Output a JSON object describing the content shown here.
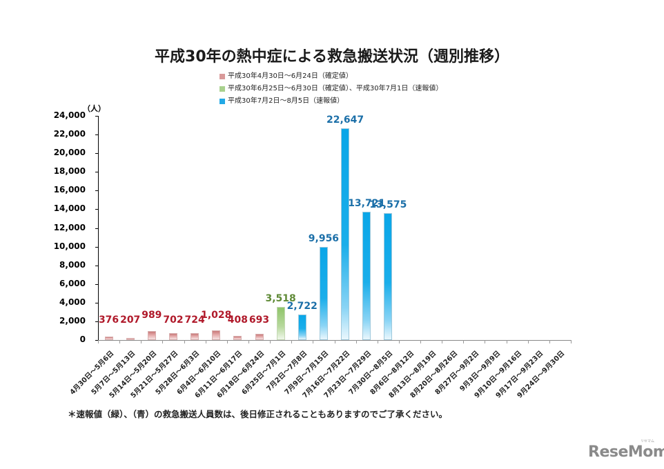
{
  "title": "平成30年の熱中症による救急搬送状況（週別推移）",
  "legend": [
    {
      "label": "平成30年4月30日～6月24日（確定値）",
      "color": "#d99a9a"
    },
    {
      "label": "平成30年6月25日～6月30日（確定値）、平成30年7月1日（速報値）",
      "color": "#a9d18e"
    },
    {
      "label": "平成30年7月2日～8月5日（速報値）",
      "color": "#22a9e6"
    }
  ],
  "note": "＊速報値（緑）、（青）の救急搬送人員数は、後日修正されることもありますのでご了承ください。",
  "logo": {
    "text": "ReseMom",
    "ruby": "リセマム"
  },
  "chart_data": {
    "type": "bar",
    "title": "平成30年の熱中症による救急搬送状況（週別推移）",
    "xlabel": "",
    "ylabel": "（人）",
    "ylim": [
      0,
      24000
    ],
    "yticks": [
      "0",
      "2,000",
      "4,000",
      "6,000",
      "8,000",
      "10,000",
      "12,000",
      "14,000",
      "16,000",
      "18,000",
      "20,000",
      "22,000",
      "24,000"
    ],
    "grid": false,
    "legend_position": "top",
    "categories": [
      "4月30日～5月6日",
      "5月7日～5月13日",
      "5月14日～5月20日",
      "5月21日～5月27日",
      "5月28日～6月3日",
      "6月4日～6月10日",
      "6月11日～6月17日",
      "6月18日～6月24日",
      "6月25日～7月1日",
      "7月2日～7月8日",
      "7月9日～7月15日",
      "7月16日～7月22日",
      "7月23日～7月29日",
      "7月30日～8月5日",
      "8月6日～8月12日",
      "8月13日～8月19日",
      "8月20日～8月26日",
      "8月27日～9月2日",
      "9月3日～9月9日",
      "9月10日～9月16日",
      "9月17日～9月23日",
      "9月24日～9月30日"
    ],
    "series": [
      {
        "name": "平成30年4月30日～6月24日（確定値）",
        "color": "#d99a9a",
        "values": [
          376,
          207,
          989,
          702,
          724,
          1028,
          408,
          693,
          null,
          null,
          null,
          null,
          null,
          null,
          null,
          null,
          null,
          null,
          null,
          null,
          null,
          null
        ],
        "labels": [
          "376",
          "207",
          "989",
          "702",
          "724",
          "1,028",
          "408",
          "693"
        ]
      },
      {
        "name": "平成30年6月25日～6月30日（確定値）、平成30年7月1日（速報値）",
        "color": "#a9d18e",
        "values": [
          null,
          null,
          null,
          null,
          null,
          null,
          null,
          null,
          3518,
          null,
          null,
          null,
          null,
          null,
          null,
          null,
          null,
          null,
          null,
          null,
          null,
          null
        ],
        "labels": [
          "3,518"
        ]
      },
      {
        "name": "平成30年7月2日～8月5日（速報値）",
        "color": "#22a9e6",
        "values": [
          null,
          null,
          null,
          null,
          null,
          null,
          null,
          null,
          null,
          2722,
          9956,
          22647,
          13721,
          13575,
          null,
          null,
          null,
          null,
          null,
          null,
          null,
          null
        ],
        "labels": [
          "2,722",
          "9,956",
          "22,647",
          "13,721",
          "13,575"
        ]
      }
    ]
  }
}
